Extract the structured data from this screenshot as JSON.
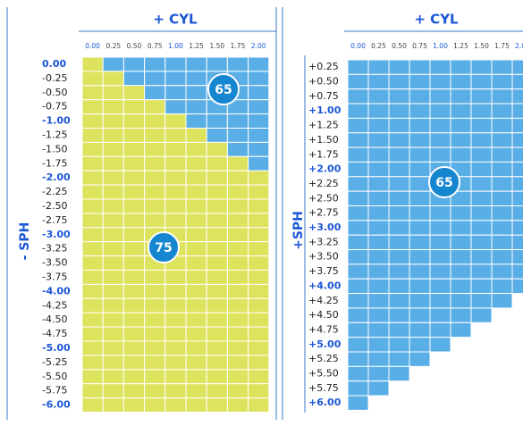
{
  "panels": [
    {
      "title": "+ CYL",
      "cyl_labels": [
        "0.00",
        "0.25",
        "0.50",
        "0.75",
        "1.00",
        "1.25",
        "1.50",
        "1.75",
        "2.00"
      ],
      "sph_labels": [
        "0.00",
        "-0.25",
        "-0.50",
        "-0.75",
        "-1.00",
        "-1.25",
        "-1.50",
        "-1.75",
        "-2.00",
        "-2.25",
        "-2.50",
        "-2.75",
        "-3.00",
        "-3.25",
        "-3.50",
        "-3.75",
        "-4.00",
        "-4.25",
        "-4.50",
        "-4.75",
        "-5.00",
        "-5.25",
        "-5.50",
        "-5.75",
        "-6.00"
      ],
      "axis_label": "- SPH",
      "badges": [
        "65",
        "75"
      ]
    },
    {
      "title": "+ CYL",
      "cyl_labels": [
        "0.00",
        "0.25",
        "0.50",
        "0.75",
        "1.00",
        "1.25",
        "1.50",
        "1.75",
        "2.00"
      ],
      "sph_labels": [
        "+0.25",
        "+0.50",
        "+0.75",
        "+1.00",
        "+1.25",
        "+1.50",
        "+1.75",
        "+2.00",
        "+2.25",
        "+2.50",
        "+2.75",
        "+3.00",
        "+3.25",
        "+3.50",
        "+3.75",
        "+4.00",
        "+4.25",
        "+4.50",
        "+4.75",
        "+5.00",
        "+5.25",
        "+5.50",
        "+5.75",
        "+6.00"
      ],
      "axis_label": "+SPH",
      "badges": [
        "65"
      ]
    }
  ]
}
